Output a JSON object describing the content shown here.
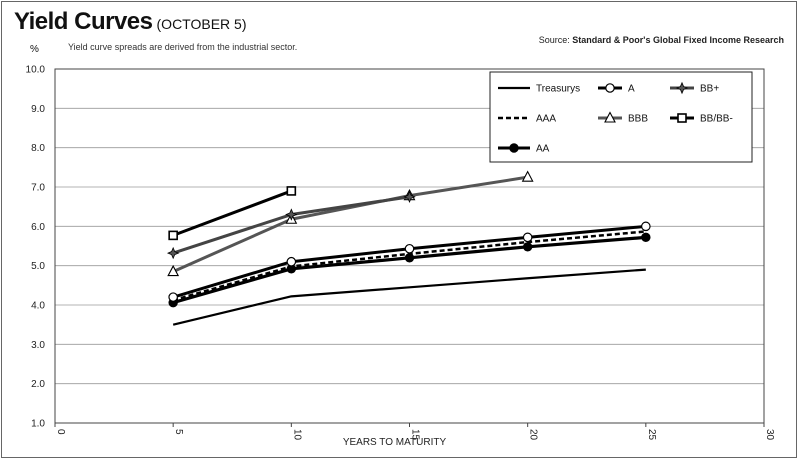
{
  "header": {
    "title": "Yield Curves",
    "date": "(OCTOBER 5)",
    "unit": "%",
    "subtitle": "Yield curve spreads are derived from the industrial sector.",
    "source_prefix": "Source:",
    "source_name": "Standard & Poor's Global Fixed Income Research"
  },
  "chart_data": {
    "type": "line",
    "xlabel": "YEARS TO MATURITY",
    "ylabel": "%",
    "xlim": [
      0,
      30
    ],
    "ylim": [
      1.0,
      10.0
    ],
    "x_ticks": [
      0,
      5,
      10,
      15,
      20,
      25,
      30
    ],
    "y_ticks": [
      1.0,
      2.0,
      3.0,
      4.0,
      5.0,
      6.0,
      7.0,
      8.0,
      9.0,
      10.0
    ],
    "grid": "horizontal",
    "legend_position": "top-right",
    "series": [
      {
        "name": "Treasurys",
        "x": [
          5,
          10,
          15,
          20,
          25
        ],
        "values": [
          3.5,
          4.22,
          4.45,
          4.68,
          4.9
        ],
        "style": "solid",
        "marker": "none",
        "color": "#000000",
        "width": 2.2
      },
      {
        "name": "AAA",
        "x": [
          5,
          10,
          15,
          20,
          25
        ],
        "values": [
          4.12,
          4.98,
          5.3,
          5.6,
          5.87
        ],
        "style": "dashed",
        "marker": "none",
        "color": "#000000",
        "width": 2.5
      },
      {
        "name": "AA",
        "x": [
          5,
          10,
          15,
          20,
          25
        ],
        "values": [
          4.06,
          4.92,
          5.2,
          5.48,
          5.72
        ],
        "style": "solid",
        "marker": "filled-circle",
        "color": "#000000",
        "width": 3.2
      },
      {
        "name": "A",
        "x": [
          5,
          10,
          15,
          20,
          25
        ],
        "values": [
          4.2,
          5.1,
          5.43,
          5.72,
          6.0
        ],
        "style": "solid",
        "marker": "open-circle",
        "color": "#000000",
        "width": 3
      },
      {
        "name": "BBB",
        "x": [
          5,
          10,
          15,
          20
        ],
        "values": [
          4.85,
          6.18,
          6.78,
          7.25
        ],
        "style": "solid",
        "marker": "open-triangle",
        "color": "#555555",
        "width": 3
      },
      {
        "name": "BB+",
        "x": [
          5,
          10,
          15
        ],
        "values": [
          5.32,
          6.3,
          6.75
        ],
        "style": "solid",
        "marker": "star",
        "color": "#444444",
        "width": 3
      },
      {
        "name": "BB/BB-",
        "x": [
          5,
          10
        ],
        "values": [
          5.77,
          6.9
        ],
        "style": "solid",
        "marker": "open-square",
        "color": "#000000",
        "width": 3
      }
    ]
  }
}
